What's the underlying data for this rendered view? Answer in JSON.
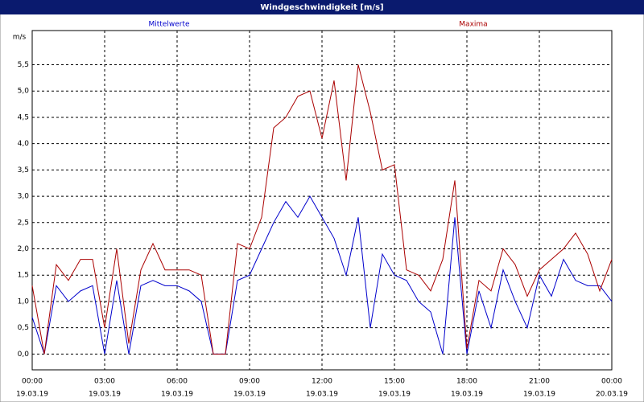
{
  "chart_data": {
    "type": "line",
    "title": "Windgeschwindigkeit [m/s]",
    "y_label": "m/s",
    "x": [
      0,
      0.5,
      1,
      1.5,
      2,
      2.5,
      3,
      3.5,
      4,
      4.5,
      5,
      5.5,
      6,
      6.5,
      7,
      7.5,
      8,
      8.5,
      9,
      9.5,
      10,
      10.5,
      11,
      11.5,
      12,
      12.5,
      13,
      13.5,
      14,
      14.5,
      15,
      15.5,
      16,
      16.5,
      17,
      17.5,
      18,
      18.5,
      19,
      19.5,
      20,
      20.5,
      21,
      21.5,
      22,
      22.5,
      23,
      23.5,
      24
    ],
    "series": [
      {
        "name": "Mittelwerte",
        "color": "#0000cc",
        "values": [
          0.7,
          0.0,
          1.3,
          1.0,
          1.2,
          1.3,
          0.0,
          1.4,
          0.0,
          1.3,
          1.4,
          1.3,
          1.3,
          1.2,
          1.0,
          0.0,
          0.0,
          1.4,
          1.5,
          2.0,
          2.5,
          2.9,
          2.6,
          3.0,
          2.6,
          2.2,
          1.5,
          2.6,
          0.5,
          1.9,
          1.5,
          1.4,
          1.0,
          0.8,
          0.0,
          2.6,
          0.0,
          1.2,
          0.5,
          1.6,
          1.0,
          0.5,
          1.5,
          1.1,
          1.8,
          1.4,
          1.3,
          1.3,
          1.0
        ]
      },
      {
        "name": "Maxima",
        "color": "#aa0000",
        "values": [
          1.3,
          0.0,
          1.7,
          1.4,
          1.8,
          1.8,
          0.5,
          2.0,
          0.2,
          1.6,
          2.1,
          1.6,
          1.6,
          1.6,
          1.5,
          0.0,
          0.0,
          2.1,
          2.0,
          2.6,
          4.3,
          4.5,
          4.9,
          5.0,
          4.1,
          5.2,
          3.3,
          5.5,
          4.6,
          3.5,
          3.6,
          1.6,
          1.5,
          1.2,
          1.8,
          3.3,
          0.1,
          1.4,
          1.2,
          2.0,
          1.7,
          1.1,
          1.6,
          1.8,
          2.0,
          2.3,
          1.9,
          1.2,
          1.8
        ]
      }
    ],
    "xlim": [
      0,
      24
    ],
    "ylim": [
      -0.3,
      6.15
    ],
    "xticks": [
      {
        "value": 0,
        "label": "00:00",
        "date": "19.03.19"
      },
      {
        "value": 3,
        "label": "03:00",
        "date": "19.03.19"
      },
      {
        "value": 6,
        "label": "06:00",
        "date": "19.03.19"
      },
      {
        "value": 9,
        "label": "09:00",
        "date": "19.03.19"
      },
      {
        "value": 12,
        "label": "12:00",
        "date": "19.03.19"
      },
      {
        "value": 15,
        "label": "15:00",
        "date": "19.03.19"
      },
      {
        "value": 18,
        "label": "18:00",
        "date": "19.03.19"
      },
      {
        "value": 21,
        "label": "21:00",
        "date": "19.03.19"
      },
      {
        "value": 24,
        "label": "00:00",
        "date": "20.03.19"
      }
    ],
    "yticks": [
      {
        "value": 0,
        "label": "0,0"
      },
      {
        "value": 0.5,
        "label": "0,5"
      },
      {
        "value": 1,
        "label": "1,0"
      },
      {
        "value": 1.5,
        "label": "1,5"
      },
      {
        "value": 2,
        "label": "2,0"
      },
      {
        "value": 2.5,
        "label": "2,5"
      },
      {
        "value": 3,
        "label": "3,0"
      },
      {
        "value": 3.5,
        "label": "3,5"
      },
      {
        "value": 4,
        "label": "4,0"
      },
      {
        "value": 4.5,
        "label": "4,5"
      },
      {
        "value": 5,
        "label": "5,0"
      },
      {
        "value": 5.5,
        "label": "5,5"
      }
    ],
    "grid": true
  }
}
